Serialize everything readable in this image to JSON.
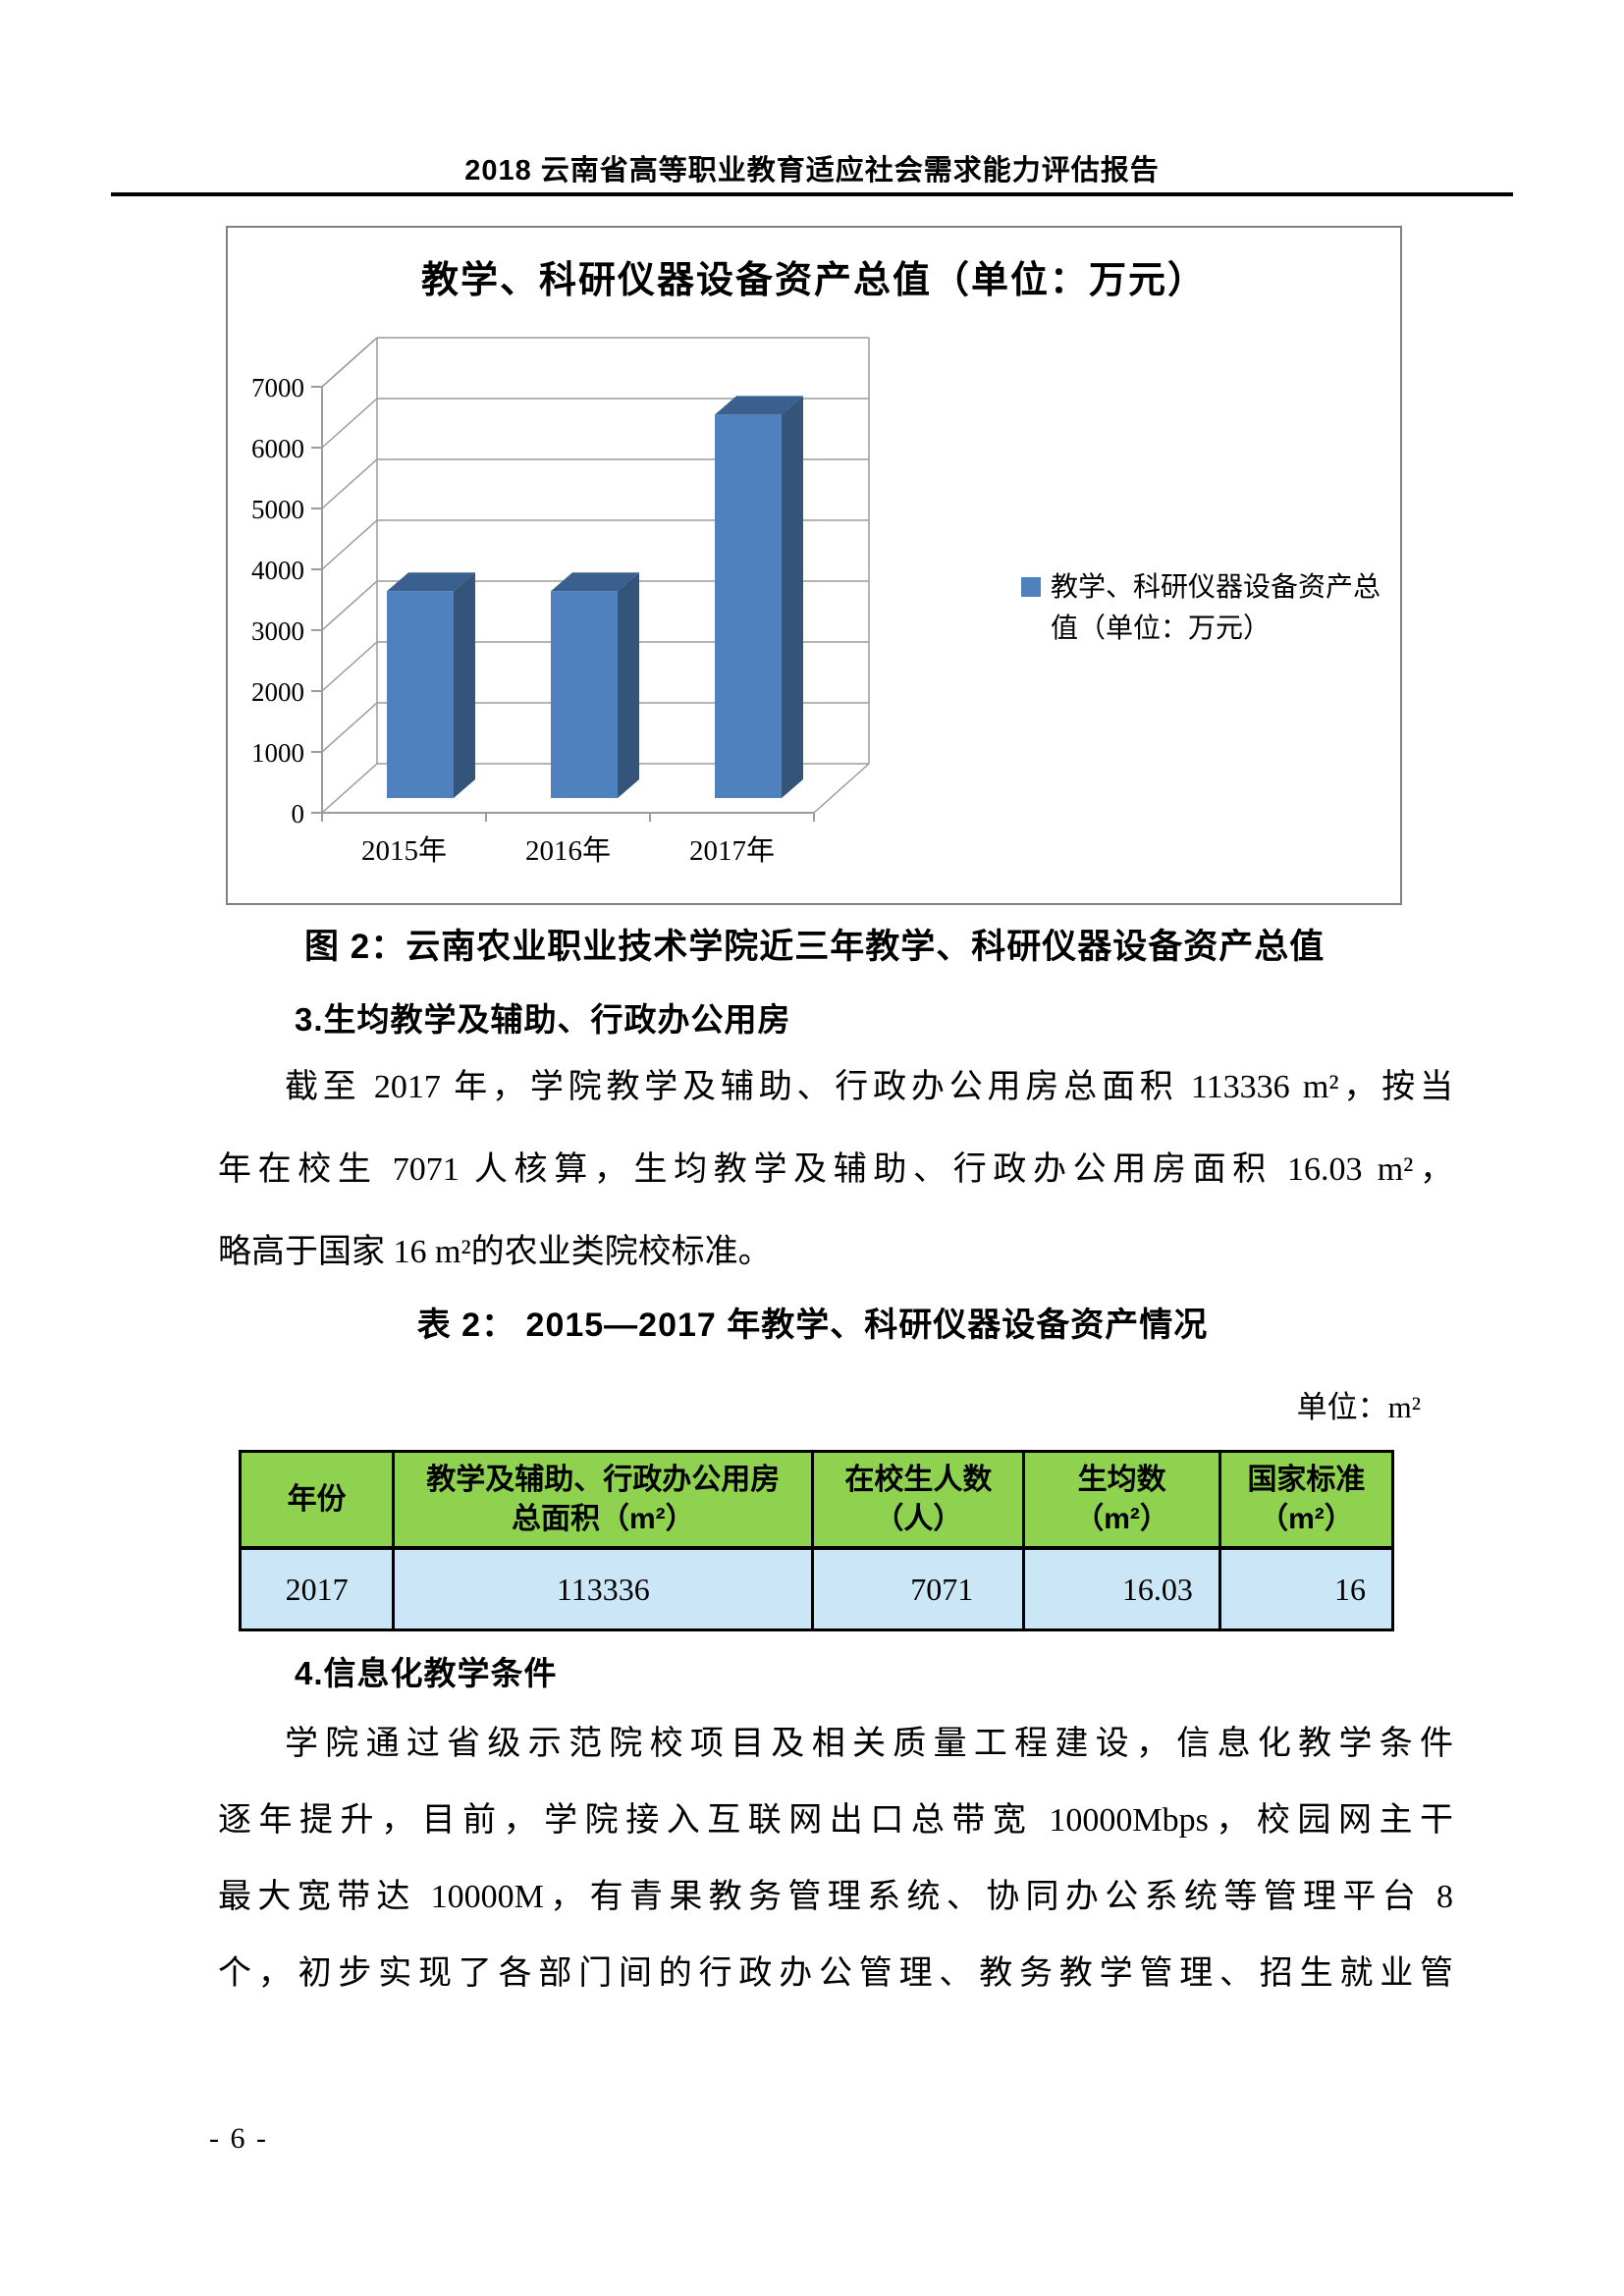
{
  "header": {
    "title": "2018 云南省高等职业教育适应社会需求能力评估报告"
  },
  "chart_data": {
    "type": "bar",
    "style": "3d-column",
    "title": "教学、科研仪器设备资产总值（单位：万元）",
    "categories": [
      "2015年",
      "2016年",
      "2017年"
    ],
    "series": [
      {
        "name": "教学、科研仪器设备资产总值（单位：万元）",
        "values": [
          3400,
          3400,
          6300
        ],
        "values_estimated_from_gridlines": true
      }
    ],
    "xlabel": "",
    "ylabel": "",
    "ylim": [
      0,
      7000
    ],
    "yticks": [
      0,
      1000,
      2000,
      3000,
      4000,
      5000,
      6000,
      7000
    ],
    "grid": true,
    "legend": {
      "position": "right",
      "lines": [
        "教学、科研仪器设备资产总",
        "值（单位：万元）"
      ]
    },
    "colors": {
      "bar_front": "#4e81bd",
      "bar_top": "#3a608f",
      "bar_side": "#35547a",
      "grid": "#9b9b9b",
      "border": "#808080"
    }
  },
  "figure_caption": "图 2：云南农业职业技术学院近三年教学、科研仪器设备资产总值",
  "section3": {
    "heading": "3.生均教学及辅助、行政办公用房",
    "lines": [
      "截至 2017 年，学院教学及辅助、行政办公用房总面积 113336 m²，按当",
      "年在校生 7071 人核算，生均教学及辅助、行政办公用房面积 16.03 m²，",
      "略高于国家 16 m²的农业类院校标准。"
    ]
  },
  "table2": {
    "title": "表 2： 2015—2017 年教学、科研仪器设备资产情况",
    "unit_label": "单位：m²",
    "headers": [
      {
        "line1": "年份",
        "line2": ""
      },
      {
        "line1": "教学及辅助、行政办公用房",
        "line2": "总面积（m²）"
      },
      {
        "line1": "在校生人数",
        "line2": "（人）"
      },
      {
        "line1": "生均数",
        "line2": "（m²）"
      },
      {
        "line1": "国家标准",
        "line2": "（m²）"
      }
    ],
    "row": [
      "2017",
      "113336",
      "7071",
      "16.03",
      "16"
    ],
    "colors": {
      "header_bg": "#8fd24f",
      "row_bg": "#cbe7f7",
      "border": "#000000"
    }
  },
  "section4": {
    "heading": "4.信息化教学条件",
    "lines": [
      "学院通过省级示范院校项目及相关质量工程建设，信息化教学条件",
      "逐年提升，目前，学院接入互联网出口总带宽 10000Mbps，校园网主干",
      "最大宽带达 10000M，有青果教务管理系统、协同办公系统等管理平台 8",
      "个，初步实现了各部门间的行政办公管理、教务教学管理、招生就业管"
    ]
  },
  "footer": {
    "page_number": "- 6 -"
  }
}
